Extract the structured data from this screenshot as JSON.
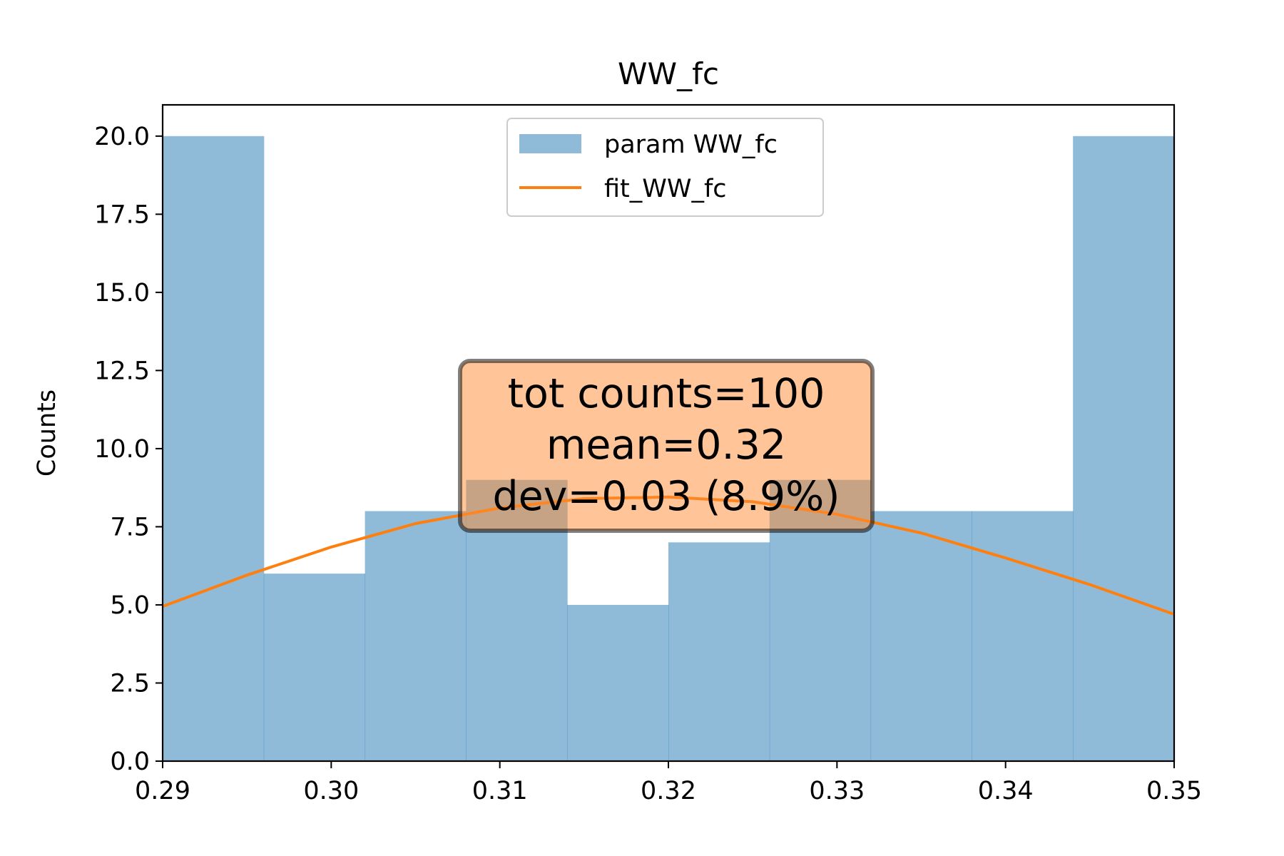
{
  "chart_data": {
    "type": "bar",
    "title": "WW_fc",
    "xlabel": "",
    "ylabel": "Counts",
    "xlim": [
      0.29,
      0.35
    ],
    "ylim": [
      0,
      21
    ],
    "x_ticks": [
      "0.29",
      "0.30",
      "0.31",
      "0.32",
      "0.33",
      "0.34",
      "0.35"
    ],
    "x_tick_values": [
      0.29,
      0.3,
      0.31,
      0.32,
      0.33,
      0.34,
      0.35
    ],
    "y_ticks": [
      "0.0",
      "2.5",
      "5.0",
      "7.5",
      "10.0",
      "12.5",
      "15.0",
      "17.5",
      "20.0"
    ],
    "y_tick_values": [
      0,
      2.5,
      5,
      7.5,
      10,
      12.5,
      15,
      17.5,
      20
    ],
    "legend_position": "upper center",
    "grid": false,
    "series": [
      {
        "name": "param WW_fc",
        "kind": "histogram",
        "color": "#1f77b4",
        "alpha": 0.5,
        "bin_edges": [
          0.29,
          0.296,
          0.302,
          0.308,
          0.314,
          0.32,
          0.326,
          0.332,
          0.338,
          0.344,
          0.35
        ],
        "values": [
          20,
          6,
          8,
          9,
          5,
          7,
          9,
          8,
          8,
          20
        ]
      },
      {
        "name": "fit_WW_fc",
        "kind": "line",
        "color": "#ff7f0e",
        "x": [
          0.29,
          0.295,
          0.3,
          0.305,
          0.31,
          0.315,
          0.32,
          0.325,
          0.33,
          0.335,
          0.34,
          0.345,
          0.35
        ],
        "y": [
          4.95,
          5.95,
          6.85,
          7.6,
          8.1,
          8.4,
          8.45,
          8.3,
          7.9,
          7.3,
          6.5,
          5.65,
          4.7
        ]
      }
    ],
    "annotation": {
      "lines": [
        "tot counts=100",
        "mean=0.32",
        "dev=0.03 (8.9%)"
      ],
      "box_color": "#ff8c33"
    }
  }
}
